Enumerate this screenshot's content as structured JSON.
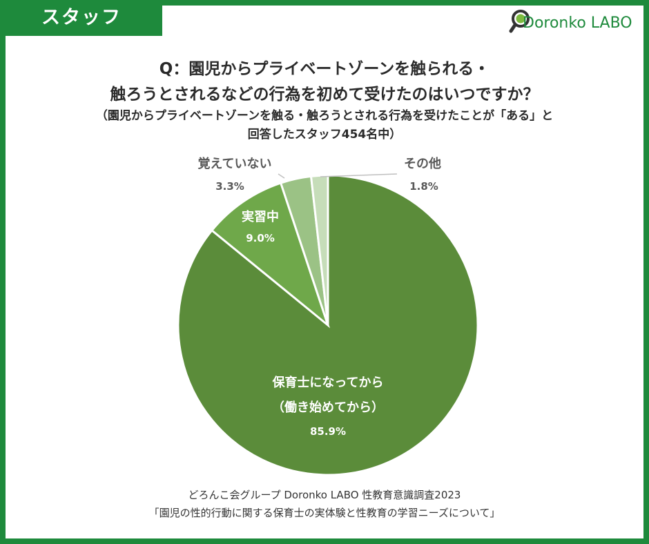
{
  "header": {
    "tag_label": "スタッフ",
    "brand": "Doronko LABO"
  },
  "title": {
    "line1": "Q：園児からプライベートゾーンを触られる・",
    "line2": "触ろうとされるなどの行為を初めて受けたのはいつですか？",
    "sub1": "（園児からプライベートゾーンを触る・触ろうとされる行為を受けたことが「ある」と",
    "sub2": "回答したスタッフ454名中）"
  },
  "chart_data": {
    "type": "pie",
    "title": "Q：園児からプライベートゾーンを触られる・触ろうとされるなどの行為を初めて受けたのはいつですか？",
    "slices": [
      {
        "label": "保育士になってから（働き始めてから）",
        "label_lines": [
          "保育士になってから",
          "（働き始めてから）"
        ],
        "value": 85.9,
        "value_label": "85.9%",
        "color": "#5b8c3a"
      },
      {
        "label": "実習中",
        "label_lines": [
          "実習中"
        ],
        "value": 9.0,
        "value_label": "9.0%",
        "color": "#6fa84a"
      },
      {
        "label": "覚えていない",
        "label_lines": [
          "覚えていない"
        ],
        "value": 3.3,
        "value_label": "3.3%",
        "color": "#9bc285"
      },
      {
        "label": "その他",
        "label_lines": [
          "その他"
        ],
        "value": 1.8,
        "value_label": "1.8%",
        "color": "#c6ddb9"
      }
    ],
    "start": "top",
    "direction": "clockwise",
    "label_colors": {
      "inside": "#ffffff",
      "outside": "#595959"
    }
  },
  "footer": {
    "line1": "どろんこ会グループ Doronko LABO 性教育意識調査2023",
    "line2": "「園児の性的行動に関する保育士の実体験と性教育の学習ニーズについて」"
  }
}
